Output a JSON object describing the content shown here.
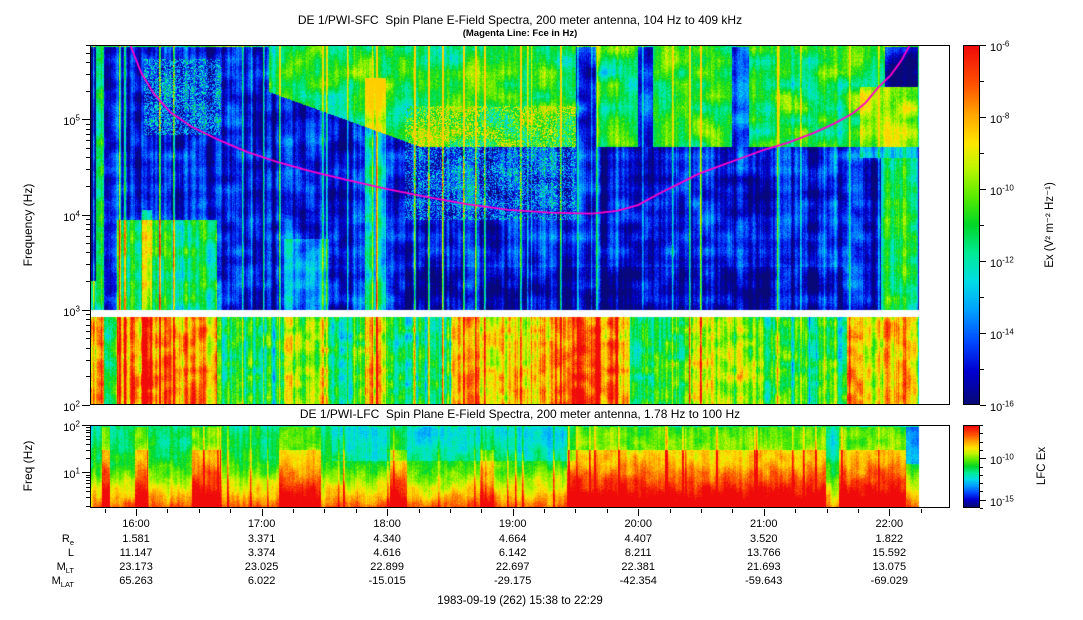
{
  "figure": {
    "title_sfc": "DE 1/PWI-SFC  Spin Plane E-Field Spectra, 200 meter antenna, 104 Hz to 409 kHz",
    "subtitle_sfc": "(Magenta Line: Fce in Hz)",
    "title_lfc": "DE 1/PWI-LFC  Spin Plane E-Field Spectra, 200 meter antenna, 1.78 Hz to 100 Hz",
    "footer": "1983-09-19 (262) 15:38 to 22:29"
  },
  "sfc_axis": {
    "ylabel": "Frequency (Hz)",
    "ytick_exponents": [
      5,
      4,
      3,
      2
    ],
    "colorbar_label": "Ex (V² m⁻² Hz⁻¹)",
    "colorbar_tick_exponents": [
      -6,
      -8,
      -10,
      -12,
      -14,
      -16
    ],
    "colorbar_exp_range": [
      -6,
      -16
    ]
  },
  "lfc_axis": {
    "ylabel": "Freq (Hz)",
    "ytick_exponents": [
      2,
      1
    ],
    "colorbar_label": "LFC Ex",
    "colorbar_tick_exponents": [
      -10,
      -15
    ],
    "colorbar_exp_range": [
      -6,
      -16
    ]
  },
  "xaxis": {
    "hour_labels": [
      "16:00",
      "17:00",
      "18:00",
      "19:00",
      "20:00",
      "21:00",
      "22:00"
    ],
    "start": "15:38",
    "end": "22:29"
  },
  "style": {
    "colormap": [
      [
        0.0,
        "#080878"
      ],
      [
        0.09,
        "#0000d2"
      ],
      [
        0.17,
        "#0046ff"
      ],
      [
        0.26,
        "#00a0ff"
      ],
      [
        0.34,
        "#00dce6"
      ],
      [
        0.42,
        "#00eb96"
      ],
      [
        0.5,
        "#00d728"
      ],
      [
        0.58,
        "#5aeb00"
      ],
      [
        0.66,
        "#bef500"
      ],
      [
        0.73,
        "#ffe600"
      ],
      [
        0.81,
        "#ffa500"
      ],
      [
        0.89,
        "#ff5500"
      ],
      [
        1.0,
        "#f00a0a"
      ]
    ],
    "fce_color": "#ff00cc"
  },
  "chart_data": [
    {
      "type": "heatmap",
      "name": "SFC spectrogram",
      "title": "DE 1/PWI-SFC  Spin Plane E-Field Spectra, 200 meter antenna, 104 Hz to 409 kHz",
      "x_start": "15:38",
      "x_end": "22:29",
      "t_total": 411,
      "t_data_end": 396.5,
      "x_ticks": [
        "16:00",
        "17:00",
        "18:00",
        "19:00",
        "20:00",
        "21:00",
        "22:00"
      ],
      "y_scale": "log",
      "y_log_range": [
        2.0,
        5.78
      ],
      "stated_band": "104 Hz to 409 kHz",
      "ylabel": "Frequency (Hz)",
      "data_gap_log": [
        2.92,
        3.0
      ],
      "colorbar": {
        "label": "Ex (V² m⁻² Hz⁻¹)",
        "scale": "log",
        "min": 1e-16,
        "max": 1e-06,
        "labeled_exponents": [
          -6,
          -8,
          -10,
          -12,
          -14,
          -16
        ]
      },
      "fce_line": {
        "name": "Fce (electron cyclotron frequency)",
        "color": "#ff00cc",
        "points_t_logf": [
          [
            19,
            5.78
          ],
          [
            24,
            5.5
          ],
          [
            30,
            5.28
          ],
          [
            38,
            5.08
          ],
          [
            48,
            4.93
          ],
          [
            60,
            4.8
          ],
          [
            75,
            4.66
          ],
          [
            90,
            4.55
          ],
          [
            105,
            4.46
          ],
          [
            122,
            4.37
          ],
          [
            142,
            4.27
          ],
          [
            160,
            4.19
          ],
          [
            180,
            4.11
          ],
          [
            200,
            4.05
          ],
          [
            220,
            4.02
          ],
          [
            240,
            4.01
          ],
          [
            252,
            4.04
          ],
          [
            262,
            4.1
          ],
          [
            272,
            4.22
          ],
          [
            282,
            4.33
          ],
          [
            291,
            4.43
          ],
          [
            302,
            4.52
          ],
          [
            312,
            4.6
          ],
          [
            322,
            4.68
          ],
          [
            334,
            4.76
          ],
          [
            346,
            4.86
          ],
          [
            356,
            4.96
          ],
          [
            365,
            5.07
          ],
          [
            371,
            5.18
          ],
          [
            377,
            5.34
          ],
          [
            383,
            5.47
          ],
          [
            388,
            5.62
          ],
          [
            392,
            5.78
          ]
        ]
      },
      "texture_features": [
        {
          "t": [
            0,
            6
          ],
          "lf": [
            2.0,
            5.78
          ],
          "dv": 0.3
        },
        {
          "t": [
            0,
            2
          ],
          "lf": [
            3.3,
            5.78
          ],
          "dv": -0.45
        },
        {
          "t": [
            12,
            60
          ],
          "lf": [
            2.0,
            3.95
          ],
          "dv": 0.34
        },
        {
          "t": [
            24,
            29
          ],
          "lf": [
            2.0,
            4.05
          ],
          "dv": 0.22
        },
        {
          "t": [
            25,
            62
          ],
          "lf": [
            4.85,
            5.65
          ],
          "dv": 0.22,
          "g": 0.55
        },
        {
          "t": [
            92,
            114
          ],
          "lf": [
            2.0,
            3.75
          ],
          "dv": 0.14
        },
        {
          "t": [
            131,
            141
          ],
          "lf": [
            2.0,
            5.45
          ],
          "dv": 0.26
        },
        {
          "t": [
            150,
            232
          ],
          "lf": [
            3.95,
            5.15
          ],
          "dv": 0.2,
          "g": 0.62
        },
        {
          "t": [
            172,
            258
          ],
          "lf": [
            2.0,
            2.92
          ],
          "dv": 0.26
        },
        {
          "t": [
            222,
            252
          ],
          "lf": [
            2.0,
            2.92
          ],
          "dv": 0.16
        },
        {
          "t": [
            286,
            322
          ],
          "lf": [
            2.0,
            2.92
          ],
          "dv": 0.15
        },
        {
          "t": [
            362,
            396
          ],
          "lf": [
            2.0,
            2.92
          ],
          "dv": 0.26
        },
        {
          "t": [
            378,
            396
          ],
          "lf": [
            3.0,
            4.6
          ],
          "dv": 0.34
        },
        {
          "t": [
            368,
            396
          ],
          "lf": [
            4.6,
            5.35
          ],
          "dv": 0.18
        },
        {
          "t": [
            150,
            360
          ],
          "lf": [
            3.0,
            3.45
          ],
          "dv": -0.06
        },
        {
          "t": [
            232,
            242
          ],
          "lf": [
            4.72,
            5.78
          ],
          "dv": -0.38
        },
        {
          "t": [
            262,
            269
          ],
          "lf": [
            4.72,
            5.78
          ],
          "dv": -0.33
        },
        {
          "t": [
            307,
            315
          ],
          "lf": [
            4.72,
            5.78
          ],
          "dv": -0.28
        },
        {
          "t": [
            380,
            396
          ],
          "lf": [
            5.35,
            5.78
          ],
          "dv": -0.45
        }
      ]
    },
    {
      "type": "heatmap",
      "name": "LFC spectrogram",
      "title": "DE 1/PWI-LFC  Spin Plane E-Field Spectra, 200 meter antenna, 1.78 Hz to 100 Hz",
      "x_start": "15:38",
      "x_end": "22:29",
      "t_total": 411,
      "t_data_end": 396.5,
      "y_scale": "log",
      "y_log_range": [
        0.25,
        2.0
      ],
      "stated_band": "1.78 Hz to 100 Hz",
      "ylabel": "Freq (Hz)",
      "colorbar": {
        "label": "LFC Ex",
        "scale": "log",
        "min": 1e-16,
        "max": 1e-06,
        "labeled_exponents": [
          -10,
          -15
        ]
      },
      "base_profile": [
        [
          2.0,
          0.43
        ],
        [
          1.55,
          0.47
        ],
        [
          1.2,
          0.52
        ],
        [
          0.95,
          0.6
        ],
        [
          0.62,
          0.72
        ],
        [
          0.4,
          0.82
        ],
        [
          0.25,
          0.9
        ]
      ],
      "texture_features": [
        {
          "t": [
            5,
            9
          ],
          "lf": [
            0.25,
            2.0
          ],
          "dv": 0.3,
          "at": 1
        },
        {
          "t": [
            21,
            27
          ],
          "lf": [
            0.25,
            2.0
          ],
          "dv": 0.28,
          "at": 1
        },
        {
          "t": [
            48,
            62
          ],
          "lf": [
            0.25,
            2.0
          ],
          "dv": 0.26,
          "at": 1
        },
        {
          "t": [
            90,
            110
          ],
          "lf": [
            0.25,
            2.0
          ],
          "dv": 0.26,
          "at": 1
        },
        {
          "t": [
            143,
            151
          ],
          "lf": [
            0.25,
            2.0
          ],
          "dv": 0.24,
          "at": 1
        },
        {
          "t": [
            186,
            193
          ],
          "lf": [
            0.25,
            2.0
          ],
          "dv": 0.18,
          "at": 1
        },
        {
          "t": [
            228,
            352
          ],
          "lf": [
            0.25,
            2.0
          ],
          "dv": 0.26,
          "at": 1
        },
        {
          "t": [
            358,
            390
          ],
          "lf": [
            0.25,
            2.0
          ],
          "dv": 0.28,
          "at": 1
        },
        {
          "t": [
            115,
            232
          ],
          "lf": [
            1.25,
            2.0
          ],
          "dv": -0.09
        },
        {
          "t": [
            390,
            397
          ],
          "lf": [
            1.2,
            2.0
          ],
          "dv": -0.22
        },
        {
          "t": [
            352,
            358
          ],
          "lf": [
            0.25,
            2.0
          ],
          "dv": -0.05
        }
      ]
    },
    {
      "type": "table",
      "name": "orbit ephemeris",
      "columns": [
        "16:00",
        "17:00",
        "18:00",
        "19:00",
        "20:00",
        "21:00",
        "22:00"
      ],
      "rows": [
        {
          "label": "R",
          "sub": "e",
          "values": [
            "1.581",
            "3.371",
            "4.340",
            "4.664",
            "4.407",
            "3.520",
            "1.822"
          ]
        },
        {
          "label": "L",
          "sub": "",
          "values": [
            "11.147",
            "3.374",
            "4.616",
            "6.142",
            "8.211",
            "13.766",
            "15.592"
          ]
        },
        {
          "label": "M",
          "sub": "LT",
          "values": [
            "23.173",
            "23.025",
            "22.899",
            "22.697",
            "22.381",
            "21.693",
            "13.075"
          ]
        },
        {
          "label": "M",
          "sub": "LAT",
          "values": [
            "65.263",
            "6.022",
            "-15.015",
            "-29.175",
            "-42.354",
            "-59.643",
            "-69.029"
          ]
        }
      ]
    }
  ]
}
